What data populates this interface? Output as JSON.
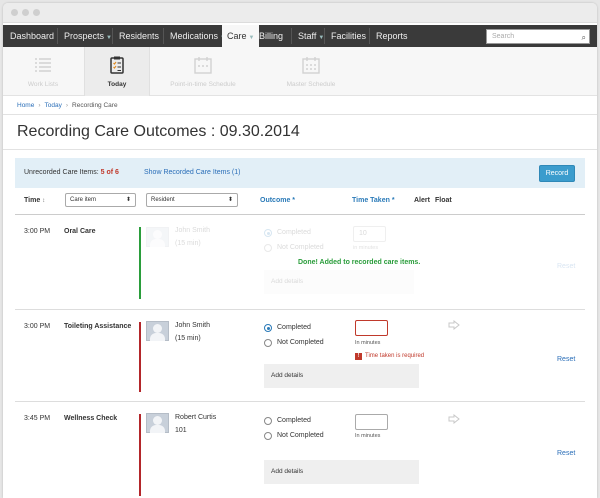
{
  "nav": {
    "items": [
      {
        "label": "Dashboard"
      },
      {
        "label": "Prospects",
        "dropdown": true
      },
      {
        "label": "Residents"
      },
      {
        "label": "Medications",
        "dropdown": true
      },
      {
        "label": "Care",
        "dropdown": true,
        "active": true
      },
      {
        "label": "Billing"
      },
      {
        "label": "Staff",
        "dropdown": true
      },
      {
        "label": "Facilities"
      },
      {
        "label": "Reports"
      }
    ],
    "search_placeholder": "Search"
  },
  "subnav": {
    "tabs": [
      {
        "label": "Work Lists",
        "icon": "list-icon"
      },
      {
        "label": "Today",
        "icon": "clipboard-icon",
        "active": true
      },
      {
        "label": "Point-in-time Schedule",
        "icon": "calendar-pit-icon"
      },
      {
        "label": "Master Schedule",
        "icon": "calendar-icon"
      }
    ]
  },
  "breadcrumb": {
    "home": "Home",
    "today": "Today",
    "current": "Recording Care"
  },
  "page_title": "Recording Care Outcomes : 09.30.2014",
  "toolbar": {
    "unrecorded_label": "Unrecorded Care Items:",
    "unrecorded_count": "5 of 6",
    "show_recorded": "Show Recorded Care Items (1)",
    "record_button": "Record"
  },
  "table": {
    "headers": {
      "time": "Time",
      "outcome": "Outcome *",
      "time_taken": "Time Taken *",
      "alert": "Alert",
      "float": "Float"
    },
    "filter_care_item": "Care item",
    "filter_resident": "Resident",
    "rows": [
      {
        "time": "3:00 PM",
        "care_item": "Oral Care",
        "resident": "John Smith",
        "duration": "(15 min)",
        "option_completed": "Completed",
        "option_not_completed": "Not Completed",
        "time_value": "10",
        "in_minutes": "in minutes",
        "add_details": "Add details",
        "reset": "Reset",
        "done_message": "Done! Added to recorded care items.",
        "status_color": "#2a9d3b"
      },
      {
        "time": "3:00 PM",
        "care_item": "Toileting Assistance",
        "resident": "John Smith",
        "duration": "(15 min)",
        "option_completed": "Completed",
        "option_not_completed": "Not Completed",
        "in_minutes": "In minutes",
        "error": "Time taken is required",
        "add_details": "Add details",
        "reset": "Reset",
        "status_color": "#b3262a"
      },
      {
        "time": "3:45 PM",
        "care_item": "Wellness Check",
        "resident": "Robert Curtis",
        "room": "101",
        "option_completed": "Completed",
        "option_not_completed": "Not Completed",
        "in_minutes": "In minutes",
        "add_details": "Add details",
        "reset": "Reset",
        "status_color": "#b3262a"
      }
    ]
  }
}
